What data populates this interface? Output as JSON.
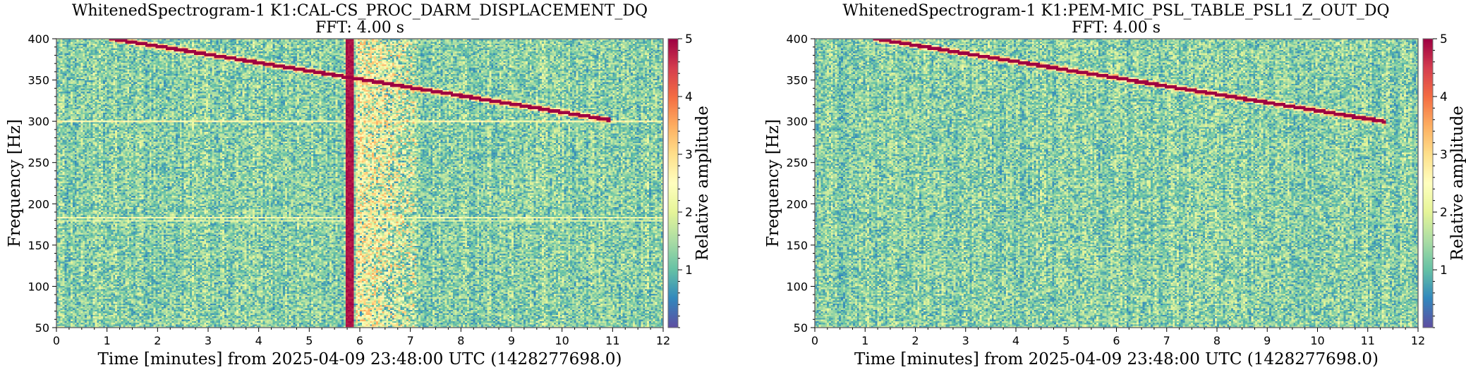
{
  "chart_data": [
    {
      "type": "heatmap",
      "title": "WhitenedSpectrogram-1 K1:CAL-CS_PROC_DARM_DISPLACEMENT_DQ",
      "subtitle": "FFT: 4.00 s",
      "xlabel": "Time [minutes] from 2025-04-09 23:48:00 UTC (1428277698.0)",
      "ylabel": "Frequency [Hz]",
      "xlim": [
        0,
        12
      ],
      "ylim": [
        50,
        400
      ],
      "x_ticks": [
        "0",
        "1",
        "2",
        "3",
        "4",
        "5",
        "6",
        "7",
        "8",
        "9",
        "10",
        "11",
        "12"
      ],
      "y_ticks": [
        "50",
        "100",
        "150",
        "200",
        "250",
        "300",
        "350",
        "400"
      ],
      "colorbar": {
        "label": "Relative amplitude",
        "range": [
          0,
          5
        ],
        "ticks": [
          "1",
          "2",
          "3",
          "4",
          "5"
        ],
        "colormap": "Spectral_r"
      },
      "features": [
        {
          "kind": "chirp",
          "start": {
            "time_min": 1.1,
            "freq_hz": 400
          },
          "end": {
            "time_min": 10.9,
            "freq_hz": 302
          },
          "amplitude": 5
        },
        {
          "kind": "broadband_glitch",
          "time_min": 5.8,
          "freq_range_hz": [
            50,
            400
          ],
          "amplitude": 5
        },
        {
          "kind": "excess_power",
          "time_range_min": [
            5.9,
            7.1
          ],
          "freq_range_hz": [
            50,
            400
          ],
          "amplitude": 2.6
        },
        {
          "kind": "line",
          "freq_hz": 300,
          "amplitude": 2.5
        },
        {
          "kind": "line",
          "freq_hz": 183,
          "amplitude": 2.3
        },
        {
          "kind": "line",
          "freq_hz": 180,
          "amplitude": 2.0
        }
      ]
    },
    {
      "type": "heatmap",
      "title": "WhitenedSpectrogram-1 K1:PEM-MIC_PSL_TABLE_PSL1_Z_OUT_DQ",
      "subtitle": "FFT: 4.00 s",
      "xlabel": "Time [minutes] from 2025-04-09 23:48:00 UTC (1428277698.0)",
      "ylabel": "Frequency [Hz]",
      "xlim": [
        0,
        12
      ],
      "ylim": [
        50,
        400
      ],
      "x_ticks": [
        "0",
        "1",
        "2",
        "3",
        "4",
        "5",
        "6",
        "7",
        "8",
        "9",
        "10",
        "11",
        "12"
      ],
      "y_ticks": [
        "50",
        "100",
        "150",
        "200",
        "250",
        "300",
        "350",
        "400"
      ],
      "colorbar": {
        "label": "Relative amplitude",
        "range": [
          0,
          5
        ],
        "ticks": [
          "1",
          "2",
          "3",
          "4",
          "5"
        ],
        "colormap": "Spectral_r"
      },
      "features": [
        {
          "kind": "chirp",
          "start": {
            "time_min": 1.2,
            "freq_hz": 400
          },
          "end": {
            "time_min": 11.3,
            "freq_hz": 300
          },
          "amplitude": 5
        }
      ]
    }
  ]
}
